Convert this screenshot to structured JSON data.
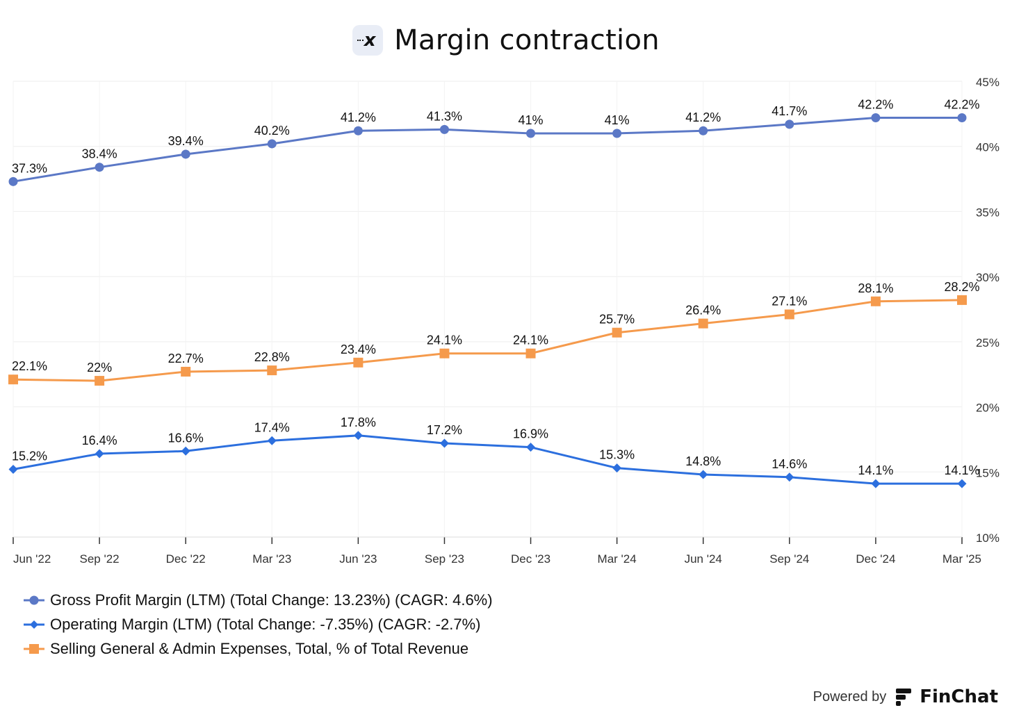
{
  "header": {
    "title": "Margin contraction",
    "logo_icon": "x-logo-icon"
  },
  "footer": {
    "powered_label": "Powered by",
    "brand": "FinChat"
  },
  "chart_data": {
    "type": "line",
    "categories": [
      "Jun '22",
      "Sep '22",
      "Dec '22",
      "Mar '23",
      "Jun '23",
      "Sep '23",
      "Dec '23",
      "Mar '24",
      "Jun '24",
      "Sep '24",
      "Dec '24",
      "Mar '25"
    ],
    "y_ticks": [
      "45%",
      "40%",
      "35%",
      "30%",
      "25%",
      "20%",
      "15%",
      "10%"
    ],
    "ylim": [
      10,
      45
    ],
    "grid": true,
    "legend_position": "bottom-left",
    "series": [
      {
        "name": "Gross Profit Margin (LTM) (Total Change: 13.23%) (CAGR: 4.6%)",
        "marker": "circle",
        "color": "#5b78c6",
        "values": [
          37.3,
          38.4,
          39.4,
          40.2,
          41.2,
          41.3,
          41.0,
          41.0,
          41.2,
          41.7,
          42.2,
          42.2
        ],
        "labels": [
          "37.3%",
          "38.4%",
          "39.4%",
          "40.2%",
          "41.2%",
          "41.3%",
          "41%",
          "41%",
          "41.2%",
          "41.7%",
          "42.2%",
          "42.2%"
        ]
      },
      {
        "name": "Operating Margin (LTM) (Total Change: -7.35%) (CAGR: -2.7%)",
        "marker": "diamond",
        "color": "#2c6fde",
        "values": [
          15.2,
          16.4,
          16.6,
          17.4,
          17.8,
          17.2,
          16.9,
          15.3,
          14.8,
          14.6,
          14.1,
          14.1
        ],
        "labels": [
          "15.2%",
          "16.4%",
          "16.6%",
          "17.4%",
          "17.8%",
          "17.2%",
          "16.9%",
          "15.3%",
          "14.8%",
          "14.6%",
          "14.1%",
          "14.1%"
        ]
      },
      {
        "name": "Selling General & Admin Expenses, Total, % of Total Revenue",
        "marker": "square",
        "color": "#f59a4c",
        "values": [
          22.1,
          22.0,
          22.7,
          22.8,
          23.4,
          24.1,
          24.1,
          25.7,
          26.4,
          27.1,
          28.1,
          28.2
        ],
        "labels": [
          "22.1%",
          "22%",
          "22.7%",
          "22.8%",
          "23.4%",
          "24.1%",
          "24.1%",
          "25.7%",
          "26.4%",
          "27.1%",
          "28.1%",
          "28.2%"
        ]
      }
    ]
  }
}
